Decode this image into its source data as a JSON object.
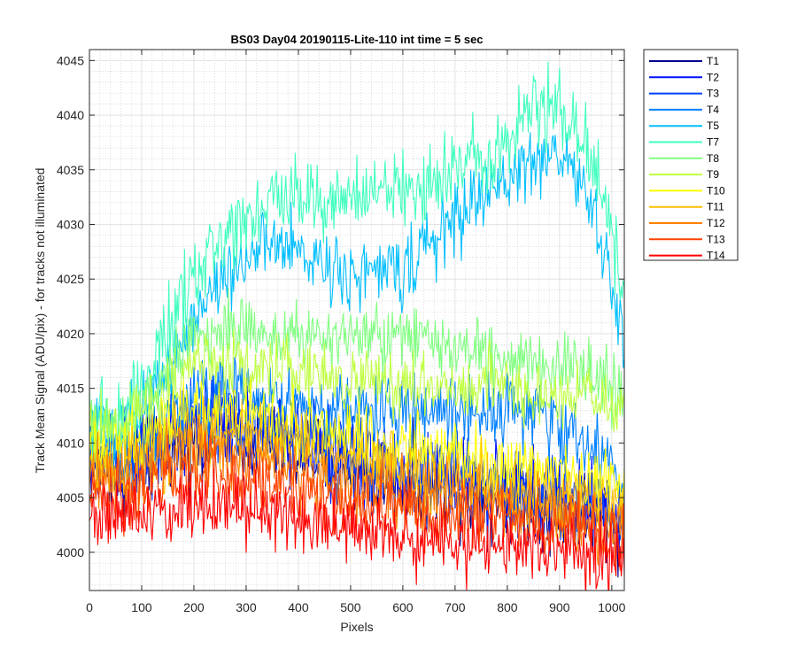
{
  "chart_data": {
    "type": "line",
    "title": "BS03 Day04 20190115-Lite-110 int time = 5 sec",
    "xlabel": "Pixels",
    "ylabel": "Track Mean Signal (ADU/pix) - for tracks not illuminated",
    "xlim": [
      0,
      1024
    ],
    "ylim": [
      3996.5,
      4046
    ],
    "xticks": [
      0,
      100,
      200,
      300,
      400,
      500,
      600,
      700,
      800,
      900,
      1000
    ],
    "yticks": [
      4000,
      4005,
      4010,
      4015,
      4020,
      4025,
      4030,
      4035,
      4040,
      4045
    ],
    "grid": "major and minor",
    "legend_position": "outside-right",
    "x": [
      0,
      50,
      100,
      150,
      200,
      250,
      300,
      350,
      400,
      450,
      500,
      550,
      600,
      650,
      700,
      750,
      800,
      850,
      900,
      950,
      1000,
      1024
    ],
    "series": [
      {
        "name": "T1",
        "color": "#00008f",
        "noise": 2.0,
        "values": [
          4008,
          4007.5,
          4008.5,
          4009.5,
          4010.5,
          4011,
          4010.5,
          4010,
          4009.5,
          4008.5,
          4008,
          4007,
          4006.5,
          4006.5,
          4006,
          4005.5,
          4005,
          4004.5,
          4004,
          4003.5,
          4003,
          4003
        ]
      },
      {
        "name": "T2",
        "color": "#0010ff",
        "noise": 2.0,
        "values": [
          4008.5,
          4008,
          4009,
          4010,
          4011,
          4011.5,
          4011,
          4010.5,
          4010,
          4009,
          4008.5,
          4007.5,
          4007,
          4007,
          4006.5,
          4006,
          4005.5,
          4005,
          4004.5,
          4004,
          4003.5,
          4003.5
        ]
      },
      {
        "name": "T3",
        "color": "#0040ff",
        "noise": 2.0,
        "values": [
          4009,
          4008.5,
          4009.5,
          4010.5,
          4011.5,
          4012,
          4011.5,
          4011,
          4010.5,
          4009.5,
          4009,
          4008,
          4007.5,
          4007.5,
          4007,
          4006.5,
          4006,
          4005.5,
          4005,
          4004.5,
          4004,
          4004
        ]
      },
      {
        "name": "T4",
        "color": "#0080ff",
        "noise": 1.6,
        "values": [
          4010,
          4008,
          4009.5,
          4012,
          4014.5,
          4015,
          4014.5,
          4014,
          4013.5,
          4013,
          4013,
          4013,
          4012.5,
          4013,
          4013,
          4013,
          4013.5,
          4012.5,
          4011.5,
          4010,
          4008,
          4006
        ]
      },
      {
        "name": "T5",
        "color": "#00bfff",
        "noise": 1.6,
        "values": [
          4012,
          4010,
          4013,
          4017,
          4021.5,
          4025,
          4027,
          4028,
          4027.5,
          4026.5,
          4025.5,
          4025.5,
          4026,
          4028,
          4030.5,
          4032.5,
          4034,
          4036,
          4036.5,
          4033,
          4025,
          4018
        ]
      },
      {
        "name": "T7",
        "color": "#40ffbf",
        "noise": 1.8,
        "values": [
          4013,
          4011.5,
          4015,
          4020,
          4025,
          4028.5,
          4031,
          4032,
          4033,
          4032.5,
          4032,
          4033,
          4033,
          4034,
          4035,
          4036.5,
          4038,
          4040.5,
          4041,
          4037.5,
          4030,
          4024
        ]
      },
      {
        "name": "T8",
        "color": "#80ff80",
        "noise": 1.5,
        "values": [
          4012.5,
          4011.5,
          4013.5,
          4016.5,
          4019.5,
          4020.5,
          4020.5,
          4020,
          4020,
          4019.5,
          4019.5,
          4019.5,
          4019.5,
          4019,
          4018.5,
          4018,
          4018,
          4017.5,
          4017,
          4016.5,
          4015,
          4014.5
        ]
      },
      {
        "name": "T9",
        "color": "#bfff40",
        "noise": 1.5,
        "values": [
          4011.5,
          4011,
          4012.5,
          4015,
          4017.5,
          4017.5,
          4017,
          4017,
          4016.5,
          4016,
          4016,
          4015.5,
          4015.5,
          4015.5,
          4015,
          4015,
          4015,
          4014.5,
          4014.5,
          4014,
          4013.5,
          4013
        ]
      },
      {
        "name": "T10",
        "color": "#ffff00",
        "noise": 1.6,
        "values": [
          4009.5,
          4009,
          4010,
          4011.5,
          4012.5,
          4013,
          4012.5,
          4012,
          4011.5,
          4011,
          4010.5,
          4010,
          4009.5,
          4009,
          4009,
          4008.5,
          4008,
          4007.5,
          4007,
          4006.5,
          4006,
          4005.5
        ]
      },
      {
        "name": "T11",
        "color": "#ffbf00",
        "noise": 1.6,
        "values": [
          4008,
          4007.5,
          4008.5,
          4009.5,
          4010.5,
          4011,
          4010.5,
          4010,
          4009.5,
          4009,
          4008.5,
          4008,
          4007.5,
          4007,
          4007,
          4006.5,
          4006,
          4005.5,
          4005,
          4004.5,
          4004,
          4004
        ]
      },
      {
        "name": "T12",
        "color": "#ff8000",
        "noise": 1.6,
        "values": [
          4007,
          4006.5,
          4007.5,
          4008.5,
          4009,
          4009,
          4008.5,
          4008,
          4007.5,
          4007,
          4006.5,
          4006,
          4005.5,
          4005,
          4005,
          4004.5,
          4004.5,
          4004,
          4003.5,
          4003,
          4002.5,
          4002.5
        ]
      },
      {
        "name": "T13",
        "color": "#ff4000",
        "noise": 1.6,
        "values": [
          4005.5,
          4005,
          4005.5,
          4006.5,
          4007,
          4007,
          4006.5,
          4006,
          4005.5,
          4005,
          4004.5,
          4004,
          4004,
          4003.5,
          4003.5,
          4003,
          4003,
          4002.5,
          4002.5,
          4002,
          4001.5,
          4001.5
        ]
      },
      {
        "name": "T14",
        "color": "#ff0000",
        "noise": 1.6,
        "values": [
          4004,
          4003,
          4003.5,
          4004,
          4004.5,
          4004.5,
          4004,
          4003.5,
          4003,
          4002.5,
          4002,
          4001.5,
          4001.5,
          4001,
          4001,
          4000.5,
          4000.5,
          4000,
          4000,
          3999.5,
          3999.5,
          3999.5
        ]
      }
    ]
  }
}
